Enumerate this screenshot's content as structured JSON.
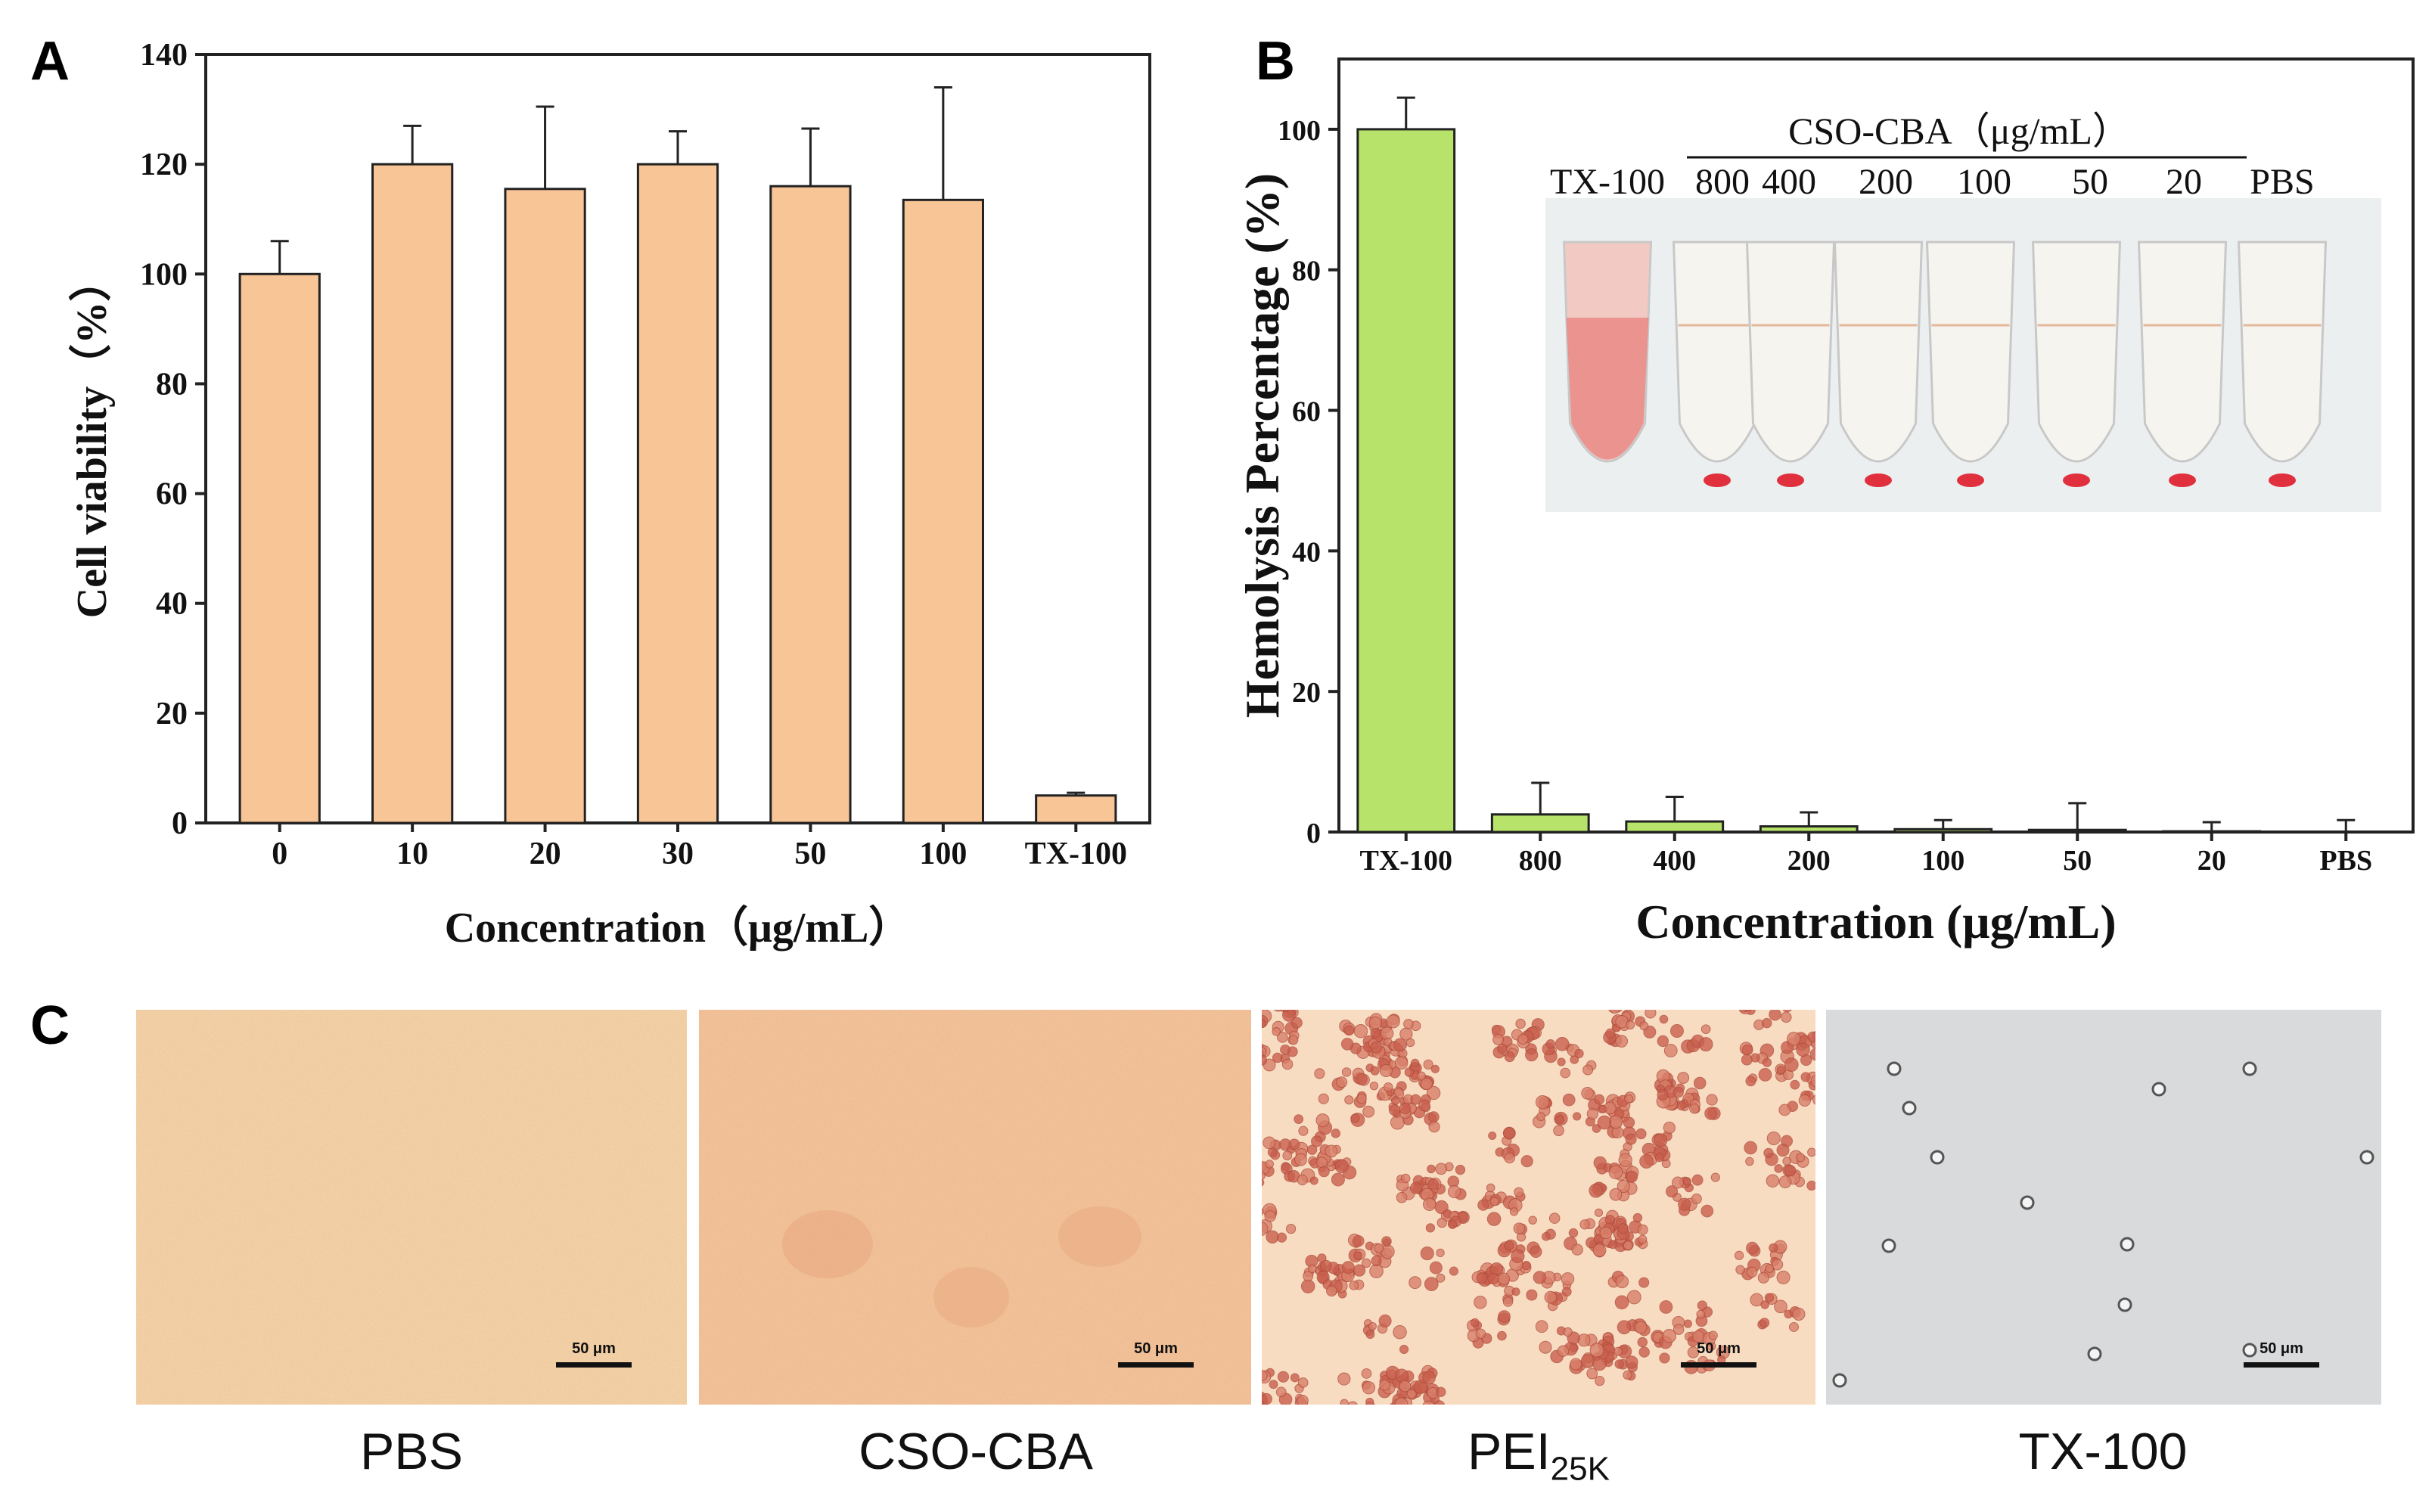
{
  "chart_data": [
    {
      "panel_label": "A",
      "type": "bar",
      "categories": [
        "0",
        "10",
        "20",
        "30",
        "50",
        "100",
        "TX-100"
      ],
      "values": [
        100,
        120,
        115.5,
        120,
        116,
        113.5,
        5
      ],
      "errors": [
        6,
        7,
        15,
        6,
        10.5,
        20.5,
        0.5
      ],
      "bar_color": "#f8c597",
      "xlabel": "Concentration（μg/mL）",
      "ylabel": "Cell viability（%）",
      "ylim": [
        0,
        140
      ],
      "yticks": [
        0,
        20,
        40,
        60,
        80,
        100,
        120,
        140
      ]
    },
    {
      "panel_label": "B",
      "type": "bar",
      "categories": [
        "TX-100",
        "800",
        "400",
        "200",
        "100",
        "50",
        "20",
        "PBS"
      ],
      "values": [
        100,
        2.5,
        1.5,
        0.8,
        0.4,
        0.3,
        0.1,
        0
      ],
      "errors": [
        4.5,
        4.5,
        3.5,
        2,
        1.3,
        3.8,
        1.3,
        1.7
      ],
      "bar_color": "#b7e36a",
      "xlabel": "Concentration (μg/mL)",
      "ylabel": "Hemolysis Percentage (%)",
      "ylim": [
        0,
        110
      ],
      "yticks": [
        0,
        20,
        40,
        60,
        80,
        100
      ],
      "inset": {
        "group_title": "CSO-CBA（μg/mL）",
        "tube_labels": [
          "TX-100",
          "800",
          "400",
          "200",
          "100",
          "50",
          "20",
          "PBS"
        ]
      }
    }
  ],
  "panel_c": {
    "label": "C",
    "scale_label": "50 μm",
    "captions": {
      "pbs": "PBS",
      "cso": "CSO-CBA",
      "pei_main": "PEI",
      "pei_sub": "25K",
      "tx": "TX-100"
    }
  },
  "colors": {
    "bar_a": "#f8c597",
    "bar_b": "#b7e36a",
    "hemolysis_red": "#e0303d"
  }
}
